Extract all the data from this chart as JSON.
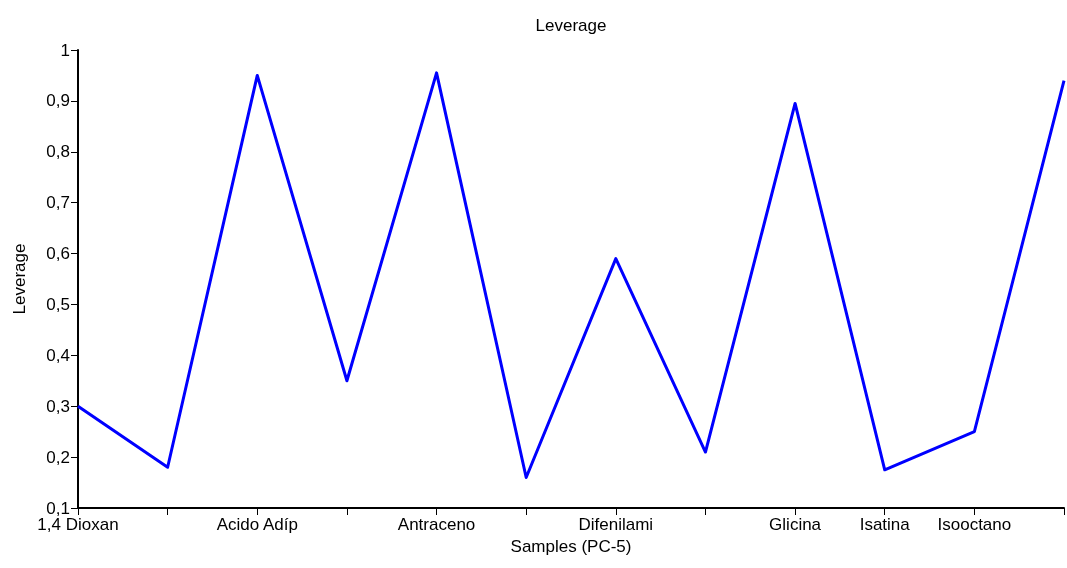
{
  "chart_data": {
    "type": "line",
    "title": "Leverage",
    "xlabel": "Samples (PC-5)",
    "ylabel": "Leverage",
    "categories": [
      "1,4 Dioxan",
      null,
      "Acido Adíp",
      null,
      "Antraceno",
      null,
      "Difenilami",
      null,
      "Glicina",
      "Isatina",
      "Isooctano",
      null
    ],
    "series": [
      {
        "color": "#0000ff",
        "values": [
          0.3,
          0.18,
          0.95,
          0.35,
          0.955,
          0.16,
          0.59,
          0.21,
          0.895,
          0.175,
          0.25,
          0.94
        ]
      }
    ],
    "ylim": [
      0.1,
      1
    ],
    "yticks": [
      {
        "value": 0.1,
        "label": "0,1"
      },
      {
        "value": 0.2,
        "label": "0,2"
      },
      {
        "value": 0.3,
        "label": "0,3"
      },
      {
        "value": 0.4,
        "label": "0,4"
      },
      {
        "value": 0.5,
        "label": "0,5"
      },
      {
        "value": 0.6,
        "label": "0,6"
      },
      {
        "value": 0.7,
        "label": "0,7"
      },
      {
        "value": 0.8,
        "label": "0,8"
      },
      {
        "value": 0.9,
        "label": "0,9"
      },
      {
        "value": 1,
        "label": "1"
      }
    ],
    "grid": false,
    "marker": "none",
    "line_style": "solid"
  }
}
